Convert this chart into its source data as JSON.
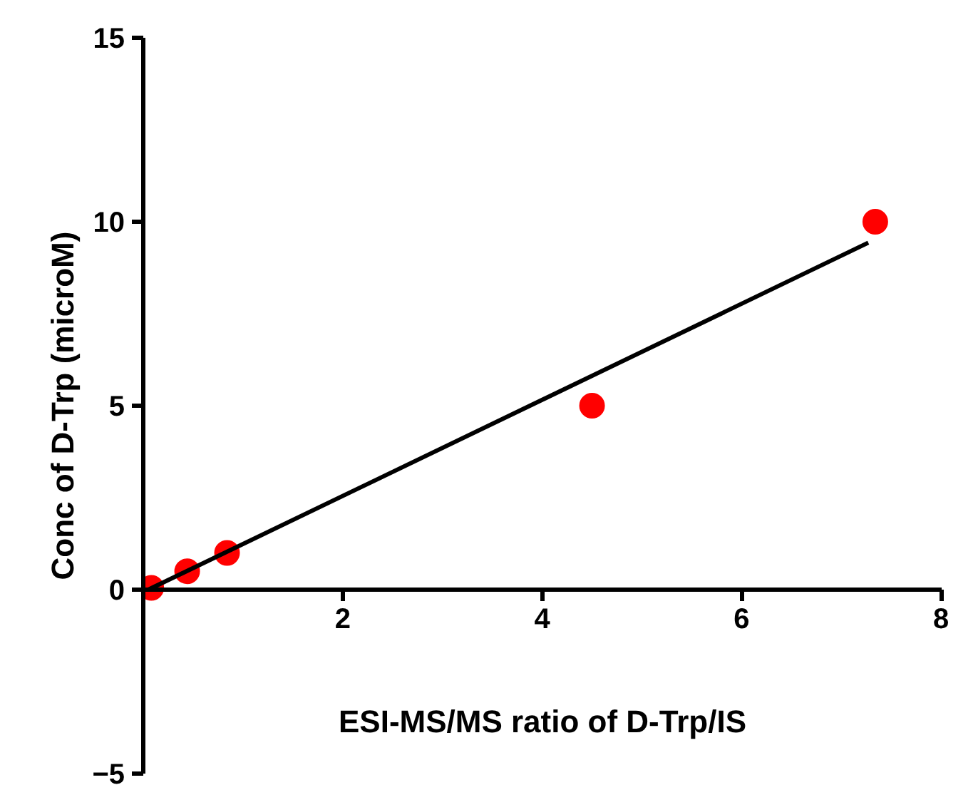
{
  "chart_data": {
    "type": "scatter",
    "xlabel": "ESI-MS/MS ratio of D-Trp/IS",
    "ylabel": "Conc of D-Trp (microM)",
    "xlim": [
      0,
      8
    ],
    "ylim": [
      -5,
      15
    ],
    "xticks": [
      2,
      4,
      6,
      8
    ],
    "yticks": [
      -5,
      0,
      5,
      10,
      15
    ],
    "grid": false,
    "marker": "circle",
    "series": [
      {
        "color": "#ff0000",
        "x": [
          0.08,
          0.44,
          0.84,
          4.5,
          7.34
        ],
        "values": [
          0.05,
          0.5,
          1,
          5,
          10
        ]
      },
      {
        "type": "line",
        "marker": "none",
        "color": "#000000",
        "x": [
          0.05,
          7.27
        ],
        "values": [
          0,
          9.43
        ]
      }
    ]
  }
}
